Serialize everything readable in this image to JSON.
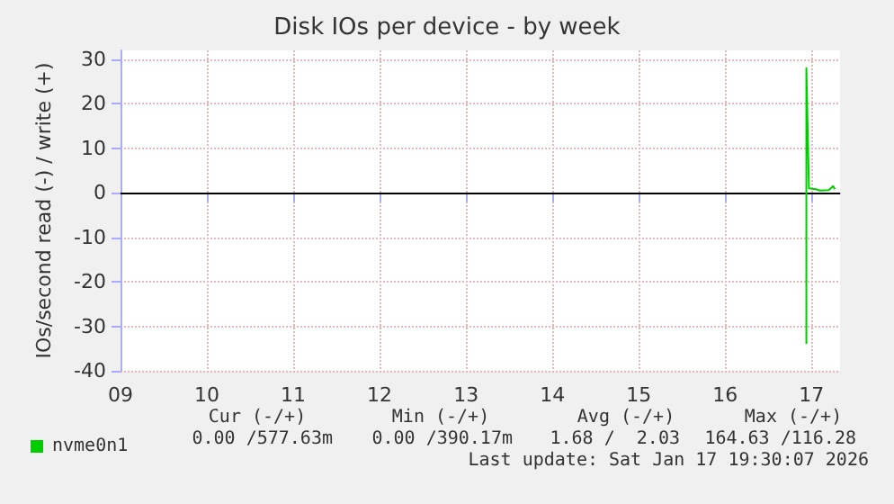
{
  "chart_data": {
    "type": "line",
    "title": "Disk IOs per device - by week",
    "ylabel": "IOs/second read (-) / write (+)",
    "xlim": [
      9,
      17.33
    ],
    "xticks": [
      {
        "value": 9,
        "label": "09"
      },
      10,
      11,
      12,
      13,
      14,
      15,
      16,
      17
    ],
    "ylim": [
      -40,
      32
    ],
    "yticks": [
      -40,
      -30,
      -20,
      -10,
      0,
      10,
      20,
      30
    ],
    "grid": true,
    "legend": "bottom left",
    "marker": "none",
    "line_style": "solid",
    "series": [
      {
        "name": "nvme0n1",
        "color": "#00cc00",
        "x": [
          16.94,
          16.94,
          16.97,
          17.05,
          17.1,
          17.2,
          17.25,
          17.27
        ],
        "values": [
          -34,
          28,
          1,
          0.8,
          0.5,
          0.6,
          1.5,
          0.8
        ]
      }
    ],
    "ref_lines": [
      {
        "axis": "y",
        "value": 0,
        "color": "#000000"
      }
    ],
    "annotations": [
      "Cur (-/+)",
      "Min (-/+)",
      "Avg (-/+)",
      "Max (-/+)",
      "0.00 /577.63m",
      "0.00 /390.17m",
      "1.68 /  2.03",
      "164.63 /116.28",
      "Last update: Sat Jan 17 19:30:07 2026"
    ]
  }
}
